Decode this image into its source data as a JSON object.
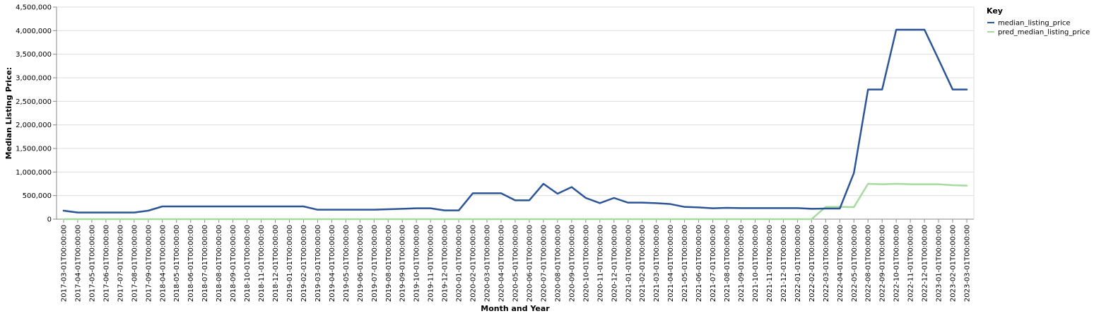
{
  "chart_data": {
    "type": "line",
    "xlabel": "Month and Year",
    "ylabel": "Median Listing Price:",
    "ylim": [
      0,
      4500000
    ],
    "yticks": [
      0,
      500000,
      1000000,
      1500000,
      2000000,
      2500000,
      3000000,
      3500000,
      4000000,
      4500000
    ],
    "ytick_labels": [
      "0",
      "500,000",
      "1,000,000",
      "1,500,000",
      "2,000,000",
      "2,500,000",
      "3,000,000",
      "3,500,000",
      "4,000,000",
      "4,500,000"
    ],
    "grid": true,
    "legend": {
      "title": "Key",
      "position": "top-right"
    },
    "x": [
      "2017-03-01T00:00:00",
      "2017-04-01T00:00:00",
      "2017-05-01T00:00:00",
      "2017-06-01T00:00:00",
      "2017-07-01T00:00:00",
      "2017-08-01T00:00:00",
      "2017-09-01T00:00:00",
      "2018-04-01T00:00:00",
      "2018-05-01T00:00:00",
      "2018-06-01T00:00:00",
      "2018-07-01T00:00:00",
      "2018-08-01T00:00:00",
      "2018-09-01T00:00:00",
      "2018-10-01T00:00:00",
      "2018-11-01T00:00:00",
      "2018-12-01T00:00:00",
      "2019-01-01T00:00:00",
      "2019-02-01T00:00:00",
      "2019-03-01T00:00:00",
      "2019-04-01T00:00:00",
      "2019-05-01T00:00:00",
      "2019-06-01T00:00:00",
      "2019-07-01T00:00:00",
      "2019-08-01T00:00:00",
      "2019-09-01T00:00:00",
      "2019-10-01T00:00:00",
      "2019-11-01T00:00:00",
      "2019-12-01T00:00:00",
      "2020-01-01T00:00:00",
      "2020-02-01T00:00:00",
      "2020-03-01T00:00:00",
      "2020-04-01T00:00:00",
      "2020-05-01T00:00:00",
      "2020-06-01T00:00:00",
      "2020-07-01T00:00:00",
      "2020-08-01T00:00:00",
      "2020-09-01T00:00:00",
      "2020-10-01T00:00:00",
      "2020-11-01T00:00:00",
      "2020-12-01T00:00:00",
      "2021-01-01T00:00:00",
      "2021-02-01T00:00:00",
      "2021-03-01T00:00:00",
      "2021-04-01T00:00:00",
      "2021-05-01T00:00:00",
      "2021-06-01T00:00:00",
      "2021-07-01T00:00:00",
      "2021-08-01T00:00:00",
      "2021-09-01T00:00:00",
      "2021-10-01T00:00:00",
      "2021-11-01T00:00:00",
      "2021-12-01T00:00:00",
      "2022-01-01T00:00:00",
      "2022-02-01T00:00:00",
      "2022-03-01T00:00:00",
      "2022-04-01T00:00:00",
      "2022-05-01T00:00:00",
      "2022-08-01T00:00:00",
      "2022-09-01T00:00:00",
      "2022-10-01T00:00:00",
      "2022-11-01T00:00:00",
      "2022-12-01T00:00:00",
      "2023-01-01T00:00:00",
      "2023-02-01T00:00:00",
      "2023-03-01T00:00:00"
    ],
    "series": [
      {
        "name": "median_listing_price",
        "color": "#2c5596",
        "values": [
          180000,
          140000,
          140000,
          140000,
          140000,
          140000,
          180000,
          270000,
          270000,
          270000,
          270000,
          270000,
          270000,
          270000,
          270000,
          270000,
          270000,
          270000,
          200000,
          200000,
          200000,
          200000,
          200000,
          210000,
          220000,
          230000,
          230000,
          185000,
          185000,
          550000,
          550000,
          550000,
          400000,
          400000,
          750000,
          540000,
          680000,
          450000,
          340000,
          450000,
          350000,
          350000,
          340000,
          320000,
          260000,
          250000,
          230000,
          240000,
          235000,
          235000,
          235000,
          235000,
          235000,
          220000,
          225000,
          225000,
          980000,
          2750000,
          2750000,
          4020000,
          4020000,
          4020000,
          3390000,
          2750000,
          2750000
        ]
      },
      {
        "name": "pred_median_listing_price",
        "color": "#a6dba0",
        "values": [
          0,
          0,
          0,
          0,
          0,
          0,
          0,
          0,
          0,
          0,
          0,
          0,
          0,
          0,
          0,
          0,
          0,
          0,
          0,
          0,
          0,
          0,
          0,
          0,
          0,
          0,
          0,
          0,
          0,
          0,
          0,
          0,
          0,
          0,
          0,
          0,
          0,
          0,
          0,
          0,
          0,
          0,
          0,
          0,
          0,
          0,
          0,
          0,
          0,
          0,
          0,
          0,
          0,
          0,
          260000,
          260000,
          255000,
          750000,
          740000,
          750000,
          740000,
          740000,
          740000,
          720000,
          710000
        ]
      }
    ]
  }
}
